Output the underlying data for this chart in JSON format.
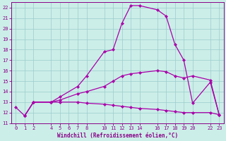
{
  "xlabel": "Windchill (Refroidissement éolien,°C)",
  "bg_color": "#cceee8",
  "grid_color": "#99cccc",
  "line_color": "#aa00aa",
  "xlim": [
    -0.5,
    23.5
  ],
  "ylim": [
    11,
    22.5
  ],
  "yticks": [
    11,
    12,
    13,
    14,
    15,
    16,
    17,
    18,
    19,
    20,
    21,
    22
  ],
  "xticks": [
    0,
    1,
    2,
    4,
    5,
    6,
    7,
    8,
    10,
    11,
    12,
    13,
    14,
    16,
    17,
    18,
    19,
    20,
    22,
    23
  ],
  "line1_x": [
    1,
    2,
    4,
    5,
    7,
    8,
    10,
    11,
    12,
    13,
    14,
    16,
    17,
    18,
    19,
    20,
    22,
    23
  ],
  "line1_y": [
    11.7,
    13.0,
    13.0,
    13.5,
    14.5,
    15.5,
    17.8,
    18.0,
    20.5,
    22.2,
    22.2,
    21.8,
    21.2,
    18.5,
    17.0,
    12.9,
    14.9,
    11.8
  ],
  "line2_x": [
    1,
    2,
    4,
    5,
    7,
    8,
    10,
    11,
    12,
    13,
    14,
    16,
    17,
    18,
    19,
    20,
    22,
    23
  ],
  "line2_y": [
    11.7,
    13.0,
    13.0,
    13.2,
    13.8,
    14.0,
    14.5,
    15.0,
    15.5,
    15.7,
    15.8,
    16.0,
    15.9,
    15.5,
    15.3,
    15.5,
    15.1,
    11.8
  ],
  "line3_x": [
    0,
    1,
    2,
    4,
    5,
    7,
    8,
    10,
    11,
    12,
    13,
    14,
    16,
    17,
    18,
    19,
    20,
    22,
    23
  ],
  "line3_y": [
    12.5,
    11.7,
    13.0,
    13.0,
    13.0,
    13.0,
    12.9,
    12.8,
    12.7,
    12.6,
    12.5,
    12.4,
    12.3,
    12.2,
    12.1,
    12.0,
    12.0,
    12.0,
    11.8
  ],
  "tick_fontsize": 5.0,
  "xlabel_fontsize": 5.5
}
